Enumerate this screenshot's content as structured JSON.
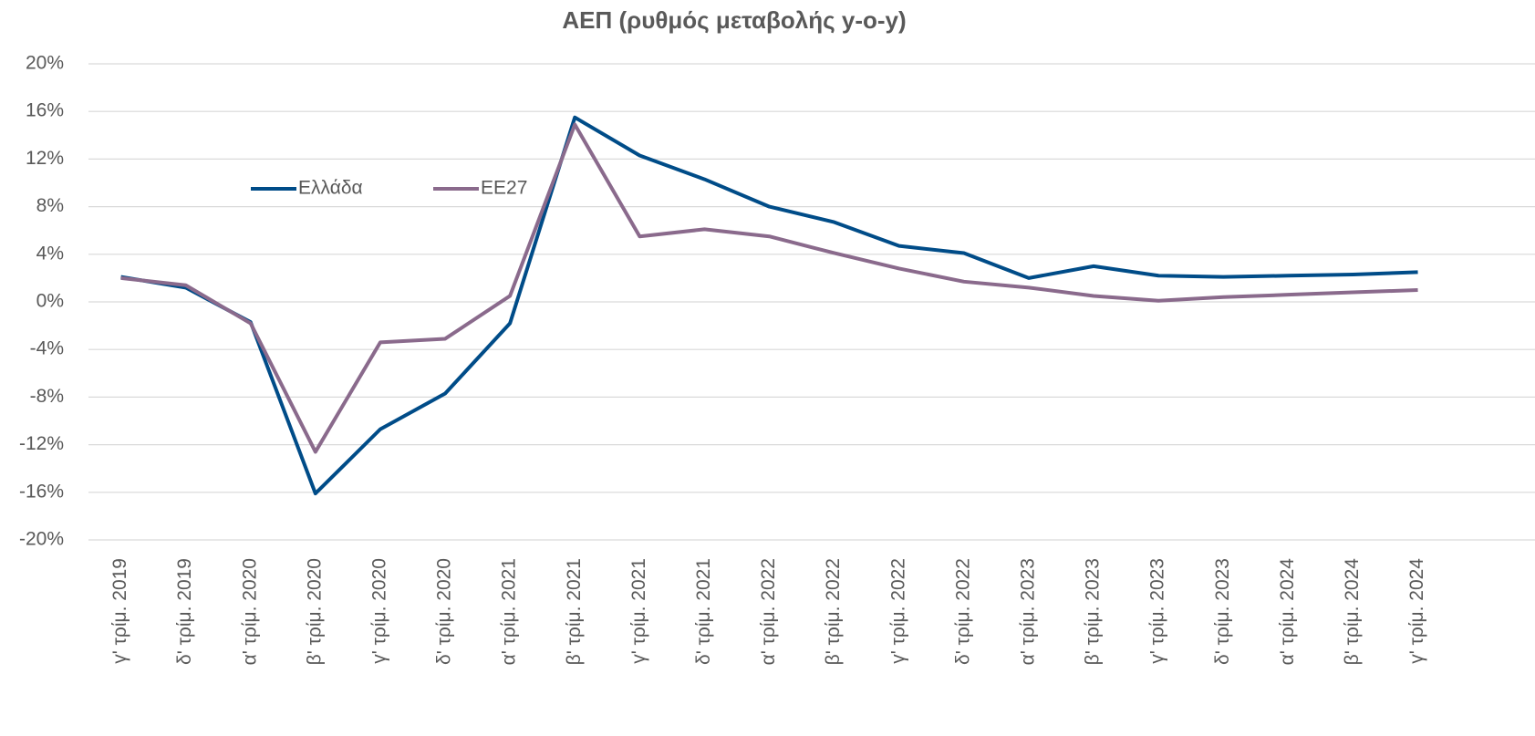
{
  "chart_data": {
    "type": "line",
    "title": "ΑΕΠ (ρυθμός μεταβολής y-o-y)",
    "categories": [
      "γ' τρίμ. 2019",
      "δ' τρίμ. 2019",
      "α' τρίμ. 2020",
      "β' τρίμ. 2020",
      "γ' τρίμ. 2020",
      "δ' τρίμ. 2020",
      "α' τρίμ. 2021",
      "β' τρίμ. 2021",
      "γ' τρίμ. 2021",
      "δ' τρίμ. 2021",
      "α' τρίμ. 2022",
      "β' τρίμ. 2022",
      "γ' τρίμ. 2022",
      "δ' τρίμ. 2022",
      "α' τρίμ. 2023",
      "β' τρίμ. 2023",
      "γ' τρίμ. 2023",
      "δ' τρίμ. 2023",
      "α' τρίμ. 2024",
      "β' τρίμ. 2024",
      "γ' τρίμ. 2024"
    ],
    "series": [
      {
        "name": "Ελλάδα",
        "color": "#004c88",
        "values": [
          2.1,
          1.2,
          -1.7,
          -16.1,
          -10.7,
          -7.7,
          -1.8,
          15.5,
          12.3,
          10.3,
          8.0,
          6.7,
          4.7,
          4.1,
          2.0,
          3.0,
          2.2,
          2.1,
          2.2,
          2.3,
          2.5
        ]
      },
      {
        "name": "ΕΕ27",
        "color": "#8a6a8c",
        "values": [
          2.0,
          1.4,
          -1.8,
          -12.6,
          -3.4,
          -3.1,
          0.5,
          14.9,
          5.5,
          6.1,
          5.5,
          4.1,
          2.8,
          1.7,
          1.2,
          0.5,
          0.1,
          0.4,
          0.6,
          0.8,
          1.0
        ]
      }
    ],
    "ylim": [
      -20,
      20
    ],
    "yticks": [
      {
        "value": -20,
        "label": "-20%"
      },
      {
        "value": -16,
        "label": "-16%"
      },
      {
        "value": -12,
        "label": "-12%"
      },
      {
        "value": -8,
        "label": "-8%"
      },
      {
        "value": -4,
        "label": "-4%"
      },
      {
        "value": 0,
        "label": "0%"
      },
      {
        "value": 4,
        "label": "4%"
      },
      {
        "value": 8,
        "label": "8%"
      },
      {
        "value": 12,
        "label": "12%"
      },
      {
        "value": 16,
        "label": "16%"
      },
      {
        "value": 20,
        "label": "20%"
      }
    ],
    "grid": true,
    "legend": "top-left"
  }
}
